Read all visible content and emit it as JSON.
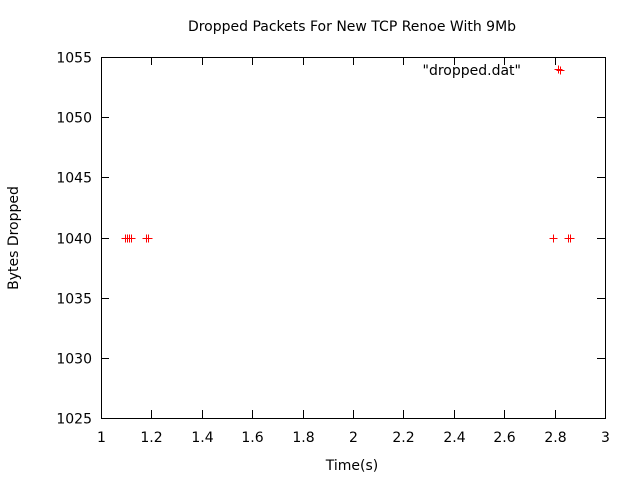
{
  "chart_data": {
    "type": "scatter",
    "title": "Dropped Packets For New TCP Renoe With 9Mb",
    "xlabel": "Time(s)",
    "ylabel": "Bytes Dropped",
    "xlim": [
      1,
      3
    ],
    "ylim": [
      1025,
      1055
    ],
    "x_ticks": [
      1,
      1.2,
      1.4,
      1.6,
      1.8,
      2,
      2.2,
      2.4,
      2.6,
      2.8,
      3
    ],
    "x_tick_labels": [
      "1",
      "1.2",
      "1.4",
      "1.6",
      "1.8",
      "2",
      "2.2",
      "2.4",
      "2.6",
      "2.8",
      "3"
    ],
    "y_ticks": [
      1025,
      1030,
      1035,
      1040,
      1045,
      1050,
      1055
    ],
    "y_tick_labels": [
      "1025",
      "1030",
      "1035",
      "1040",
      "1045",
      "1050",
      "1055"
    ],
    "grid": false,
    "legend_position": "top-right",
    "series": [
      {
        "name": "\"dropped.dat\"",
        "marker": "plus",
        "color": "#ff0000",
        "points": [
          {
            "x": 1.095,
            "y": 1040
          },
          {
            "x": 1.103,
            "y": 1040
          },
          {
            "x": 1.11,
            "y": 1040
          },
          {
            "x": 1.118,
            "y": 1040
          },
          {
            "x": 1.178,
            "y": 1040
          },
          {
            "x": 1.186,
            "y": 1040
          },
          {
            "x": 2.795,
            "y": 1040
          },
          {
            "x": 2.815,
            "y": 1054
          },
          {
            "x": 2.855,
            "y": 1040
          },
          {
            "x": 2.86,
            "y": 1040
          }
        ]
      }
    ]
  }
}
